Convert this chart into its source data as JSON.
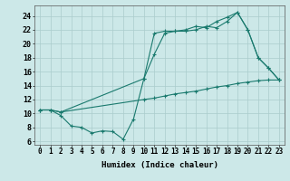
{
  "xlabel": "Humidex (Indice chaleur)",
  "bg_color": "#cce8e8",
  "line_color": "#1a7a6e",
  "xlim": [
    -0.5,
    23.5
  ],
  "ylim": [
    5.5,
    25.5
  ],
  "ytick_values": [
    6,
    8,
    10,
    12,
    14,
    16,
    18,
    20,
    22,
    24
  ],
  "xtick_labels": [
    "0",
    "1",
    "2",
    "3",
    "4",
    "5",
    "6",
    "7",
    "8",
    "9",
    "10",
    "11",
    "12",
    "13",
    "14",
    "15",
    "16",
    "17",
    "18",
    "19",
    "20",
    "21",
    "22",
    "23"
  ],
  "line1_x": [
    0,
    1,
    2,
    3,
    4,
    5,
    6,
    7,
    8,
    9,
    10,
    11,
    12,
    13,
    14,
    15,
    16,
    17,
    18,
    19,
    20,
    21,
    22,
    23
  ],
  "line1_y": [
    10.5,
    10.5,
    9.7,
    8.2,
    8.0,
    7.2,
    7.5,
    7.4,
    6.3,
    9.2,
    15.0,
    21.5,
    21.8,
    21.8,
    22.0,
    22.5,
    22.3,
    23.2,
    23.8,
    24.5,
    22.0,
    18.0,
    16.5,
    14.8
  ],
  "line2_x": [
    0,
    1,
    2,
    10,
    11,
    12,
    13,
    14,
    15,
    16,
    17,
    18,
    19,
    20,
    21,
    22,
    23
  ],
  "line2_y": [
    10.5,
    10.5,
    10.2,
    15.0,
    18.5,
    21.5,
    21.8,
    21.8,
    22.0,
    22.5,
    22.3,
    23.2,
    24.5,
    22.0,
    18.0,
    16.5,
    14.8
  ],
  "line3_x": [
    0,
    1,
    2,
    10,
    11,
    12,
    13,
    14,
    15,
    16,
    17,
    18,
    19,
    20,
    21,
    22,
    23
  ],
  "line3_y": [
    10.5,
    10.5,
    10.2,
    12.0,
    12.2,
    12.5,
    12.8,
    13.0,
    13.2,
    13.5,
    13.8,
    14.0,
    14.3,
    14.5,
    14.7,
    14.8,
    14.8
  ],
  "xlabel_fontsize": 6.5,
  "tick_fontsize": 5.5
}
